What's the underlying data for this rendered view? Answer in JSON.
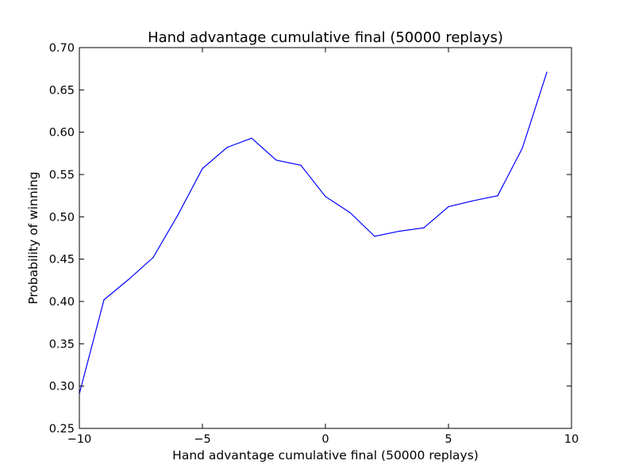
{
  "chart_data": {
    "type": "line",
    "title": "Hand advantage cumulative final (50000 replays)",
    "xlabel": "Hand advantage cumulative final (50000 replays)",
    "ylabel": "Probability of winning",
    "xlim": [
      -10,
      10
    ],
    "ylim": [
      0.25,
      0.7
    ],
    "xticks": [
      -10,
      -5,
      0,
      5,
      10
    ],
    "xtick_labels": [
      "−10",
      "−5",
      "0",
      "5",
      "10"
    ],
    "yticks": [
      0.25,
      0.3,
      0.35,
      0.4,
      0.45,
      0.5,
      0.55,
      0.6,
      0.65,
      0.7
    ],
    "ytick_labels": [
      "0.25",
      "0.30",
      "0.35",
      "0.40",
      "0.45",
      "0.50",
      "0.55",
      "0.60",
      "0.65",
      "0.70"
    ],
    "grid": false,
    "series": [
      {
        "color": "#0000ff",
        "x": [
          -10,
          -9,
          -8,
          -7,
          -6,
          -5,
          -4,
          -3,
          -2,
          -1,
          0,
          1,
          2,
          3,
          4,
          5,
          6,
          7,
          8,
          9
        ],
        "y": [
          0.291,
          0.402,
          0.426,
          0.452,
          0.502,
          0.557,
          0.582,
          0.593,
          0.567,
          0.561,
          0.524,
          0.505,
          0.477,
          0.483,
          0.487,
          0.512,
          0.519,
          0.525,
          0.581,
          0.671
        ]
      }
    ]
  }
}
